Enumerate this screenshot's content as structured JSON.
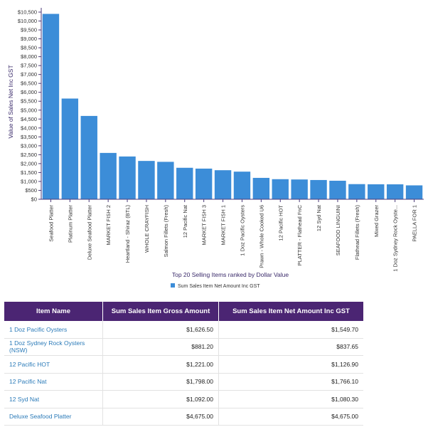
{
  "chart_data": {
    "type": "bar",
    "title": "Top 20 Selling Items ranked by Dollar Value",
    "ylabel": "Value of Sales Net Inc GST",
    "ylim": [
      0,
      10500
    ],
    "ytick_step": 500,
    "grid": false,
    "legend_position": "bottom",
    "color": "#3c8dd8",
    "categories": [
      "Seafood Platter",
      "Platinum Platter",
      "Deluxe Seafood Platter",
      "MARKET FISH 2",
      "Heartland - Shiraz (BTL)",
      "WHOLE CRAYFISH",
      "Salmon Fillets (Fresh)",
      "12 Pacific Nat",
      "MARKET FISH 3",
      "MARKET FISH 1",
      "1 Doz Pacific Oysters",
      "Prawn - Whole Cooked U6",
      "12 Pacific HOT",
      "PLATTER - Flathead FnC",
      "12 Syd Nat",
      "SEAFOOD LINGUINI",
      "Flathead Fillets (Fresh)",
      "Mixed Grazer",
      "1 Doz Sydney Rock Oyste...",
      "PAELLA FOR 1"
    ],
    "series": [
      {
        "name": "Sum Sales Item Net Amount Inc GST",
        "values": [
          10400,
          5650,
          4675,
          2600,
          2400,
          2150,
          2100,
          1766.1,
          1720,
          1630,
          1549.7,
          1200,
          1126.9,
          1110,
          1080.3,
          1040,
          850,
          840,
          837.65,
          780
        ]
      }
    ]
  },
  "table": {
    "headers": [
      "Item Name",
      "Sum Sales Item Gross Amount",
      "Sum Sales Item Net Amount Inc GST"
    ],
    "rows": [
      [
        "1 Doz Pacific Oysters",
        "$1,626.50",
        "$1,549.70"
      ],
      [
        "1 Doz Sydney Rock Oysters (NSW)",
        "$881.20",
        "$837.65"
      ],
      [
        "12 Pacific HOT",
        "$1,221.00",
        "$1,126.90"
      ],
      [
        "12 Pacific Nat",
        "$1,798.00",
        "$1,766.10"
      ],
      [
        "12 Syd Nat",
        "$1,092.00",
        "$1,080.30"
      ],
      [
        "Deluxe Seafood Platter",
        "$4,675.00",
        "$4,675.00"
      ]
    ]
  }
}
